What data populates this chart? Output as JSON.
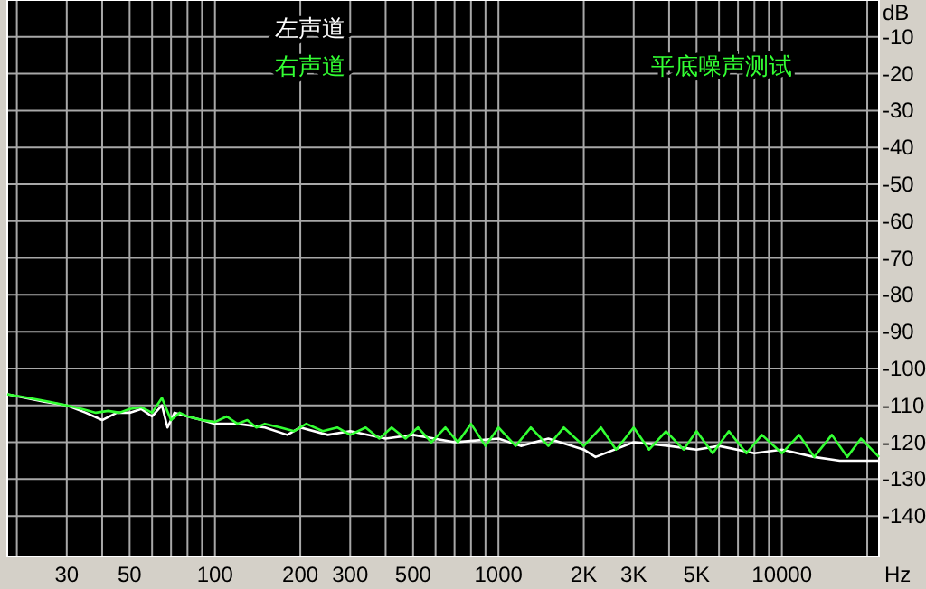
{
  "chart_data": {
    "type": "line",
    "title": "平底噪声测试",
    "xlabel": "Hz",
    "ylabel": "dB",
    "log": "x",
    "grid": true,
    "legend": "top",
    "line_style": "solid",
    "xlim": [
      18.5,
      22000
    ],
    "ylim": [
      -151,
      0
    ],
    "xticks": [
      {
        "value": 20,
        "label": null
      },
      30,
      {
        "value": 40,
        "label": null
      },
      50,
      {
        "value": 60,
        "label": null
      },
      {
        "value": 70,
        "label": null
      },
      {
        "value": 80,
        "label": null
      },
      {
        "value": 90,
        "label": null
      },
      100,
      200,
      300,
      {
        "value": 400,
        "label": null
      },
      500,
      {
        "value": 600,
        "label": null
      },
      {
        "value": 700,
        "label": null
      },
      {
        "value": 800,
        "label": null
      },
      {
        "value": 900,
        "label": null
      },
      1000,
      {
        "value": 2000,
        "label": "2K"
      },
      {
        "value": 3000,
        "label": "3K"
      },
      {
        "value": 4000,
        "label": null
      },
      {
        "value": 5000,
        "label": "5K"
      },
      {
        "value": 6000,
        "label": null
      },
      {
        "value": 7000,
        "label": null
      },
      {
        "value": 8000,
        "label": null
      },
      {
        "value": 9000,
        "label": null
      },
      10000,
      {
        "value": 20000,
        "label": null
      }
    ],
    "yticks": [
      -10,
      -20,
      -30,
      -40,
      -50,
      -60,
      -70,
      -80,
      -90,
      -100,
      -110,
      -120,
      -130,
      -140
    ],
    "series": [
      {
        "name": "左声道",
        "color": "#ffffff",
        "x": [
          18.5,
          25,
          30,
          35,
          40,
          45,
          50,
          55,
          60,
          65,
          68,
          72,
          80,
          90,
          100,
          120,
          150,
          180,
          200,
          250,
          300,
          400,
          500,
          700,
          1000,
          1200,
          1500,
          2000,
          2200,
          3000,
          4000,
          5000,
          6000,
          8000,
          10000,
          13000,
          16000,
          22000
        ],
        "values": [
          -107,
          -109,
          -110,
          -112,
          -114,
          -112,
          -112,
          -111,
          -113,
          -110,
          -116,
          -112,
          -113,
          -114,
          -115,
          -115,
          -116,
          -118,
          -116,
          -118,
          -117,
          -119,
          -118,
          -120,
          -119,
          -121,
          -119,
          -122,
          -124,
          -120,
          -121,
          -122,
          -121,
          -123,
          -122,
          -124,
          -125,
          -125
        ]
      },
      {
        "name": "右声道",
        "color": "#33ff33",
        "x": [
          18.5,
          22,
          26,
          30,
          34,
          38,
          42,
          46,
          50,
          55,
          60,
          65,
          70,
          75,
          80,
          90,
          100,
          110,
          120,
          130,
          140,
          150,
          170,
          190,
          210,
          240,
          270,
          300,
          340,
          380,
          420,
          470,
          520,
          580,
          650,
          720,
          800,
          900,
          1000,
          1150,
          1300,
          1500,
          1700,
          2000,
          2300,
          2600,
          3000,
          3400,
          3900,
          4500,
          5000,
          5700,
          6500,
          7500,
          8500,
          10000,
          11500,
          13000,
          15000,
          17000,
          19000,
          22000
        ],
        "values": [
          -107,
          -108,
          -109,
          -110,
          -111,
          -112,
          -111.5,
          -112,
          -111,
          -110.5,
          -112,
          -108,
          -114,
          -112,
          -113,
          -114,
          -114.5,
          -113,
          -115,
          -114,
          -116,
          -115,
          -116,
          -117,
          -115,
          -117,
          -116,
          -118,
          -116,
          -119,
          -116,
          -119,
          -116,
          -120,
          -116,
          -120,
          -115,
          -121,
          -116,
          -121,
          -116,
          -121,
          -116,
          -121,
          -116,
          -122,
          -116,
          -122,
          -117,
          -122,
          -117,
          -123,
          -117,
          -123,
          -118,
          -123,
          -118,
          -124,
          -118,
          -124,
          -119,
          -124
        ]
      }
    ]
  }
}
